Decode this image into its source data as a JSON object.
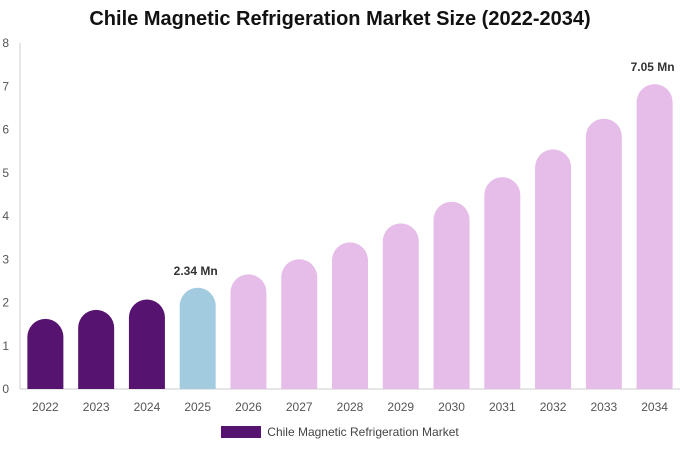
{
  "chart_data": {
    "type": "bar",
    "title": "Chile Magnetic Refrigeration Market Size (2022-2034)",
    "categories": [
      "2022",
      "2023",
      "2024",
      "2025",
      "2026",
      "2027",
      "2028",
      "2029",
      "2030",
      "2031",
      "2032",
      "2033",
      "2034"
    ],
    "series": [
      {
        "name": "Chile Magnetic Refrigeration Market",
        "values": [
          1.62,
          1.83,
          2.07,
          2.34,
          2.65,
          3.0,
          3.39,
          3.83,
          4.33,
          4.9,
          5.54,
          6.25,
          7.05
        ]
      }
    ],
    "data_labels": [
      {
        "index": 3,
        "text": "2.34 Mn"
      },
      {
        "index": 12,
        "text": "7.05 Mn"
      }
    ],
    "ylim": [
      0,
      8
    ],
    "yticks": [
      0,
      1,
      2,
      3,
      4,
      5,
      6,
      7,
      8
    ],
    "xlabel": "",
    "ylabel": "",
    "grid": false,
    "legend_position": "bottom",
    "colors": {
      "historical": "#561470",
      "base_year": "#a3cbe0",
      "forecast": "#e6bde9",
      "axis": "#cccccc",
      "tick_text": "#555555"
    },
    "bar_color_keys": [
      "historical",
      "historical",
      "historical",
      "base_year",
      "forecast",
      "forecast",
      "forecast",
      "forecast",
      "forecast",
      "forecast",
      "forecast",
      "forecast",
      "forecast"
    ]
  }
}
